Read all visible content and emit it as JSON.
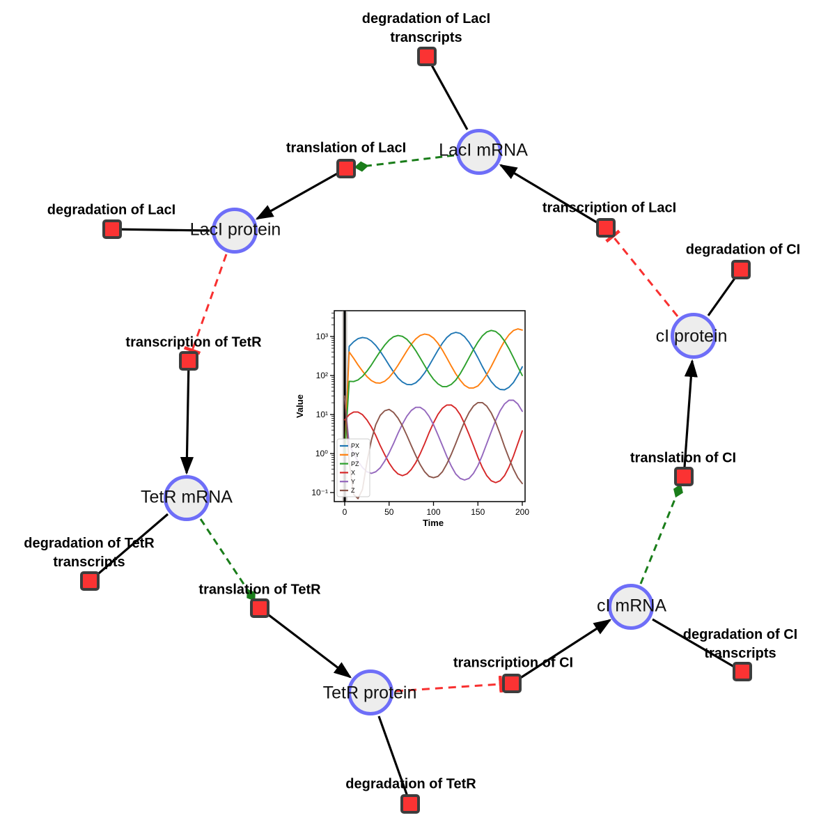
{
  "network": {
    "species": [
      {
        "id": "lacI-mrna",
        "label": "LacI mRNA"
      },
      {
        "id": "lacI-protein",
        "label": "LacI protein"
      },
      {
        "id": "tetR-mrna",
        "label": "TetR mRNA"
      },
      {
        "id": "tetR-protein",
        "label": "TetR protein"
      },
      {
        "id": "cI-mrna",
        "label": "cI mRNA"
      },
      {
        "id": "cI-protein",
        "label": "cI protein"
      }
    ],
    "reactions": [
      {
        "id": "degradation-lacI-transcripts",
        "label": "degradation of LacI transcripts"
      },
      {
        "id": "translation-lacI",
        "label": "translation of LacI"
      },
      {
        "id": "degradation-lacI",
        "label": "degradation of LacI"
      },
      {
        "id": "transcription-lacI",
        "label": "transcription of LacI"
      },
      {
        "id": "degradation-cI",
        "label": "degradation of CI"
      },
      {
        "id": "transcription-tetR",
        "label": "transcription of TetR"
      },
      {
        "id": "translation-cI",
        "label": "translation of CI"
      },
      {
        "id": "degradation-tetR-transcripts",
        "label": "degradation of TetR transcripts"
      },
      {
        "id": "translation-tetR",
        "label": "translation of TetR"
      },
      {
        "id": "degradation-cI-transcripts",
        "label": "degradation of CI transcripts"
      },
      {
        "id": "transcription-cI",
        "label": "transcription of CI"
      },
      {
        "id": "degradation-tetR",
        "label": "degradation of TetR"
      }
    ],
    "edge_types": {
      "reaction": "solid black arrow",
      "modifier": "green dashed, diamond head",
      "inhibition": "red dashed, tee head"
    }
  },
  "colors": {
    "species_fill": "#ededed",
    "species_border": "#6e6ef8",
    "reaction_fill": "#fb3333",
    "reaction_border": "#3d3d3d",
    "edge_black": "#000000",
    "modifier_green": "#1a7d1a",
    "inhibition_red": "#f83030"
  },
  "chart_data": {
    "type": "line",
    "title": "",
    "xlabel": "Time",
    "ylabel": "Value",
    "yscale": "log",
    "xlim": [
      -12,
      205
    ],
    "ylim_log10": [
      -1.23,
      3.66
    ],
    "xticks": [
      0,
      50,
      100,
      150,
      200
    ],
    "xtick_labels": [
      "0",
      "50",
      "100",
      "150",
      "200"
    ],
    "ytick_labels": [
      "10⁻¹",
      "10⁰",
      "10¹",
      "10²",
      "10³"
    ],
    "legend_position": "lower left",
    "axvline_x": 0,
    "x": [
      0,
      5,
      10,
      15,
      20,
      25,
      30,
      35,
      40,
      45,
      50,
      55,
      60,
      65,
      70,
      75,
      80,
      85,
      90,
      95,
      100,
      105,
      110,
      115,
      120,
      125,
      130,
      135,
      140,
      145,
      150,
      155,
      160,
      165,
      170,
      175,
      180,
      185,
      190,
      195,
      200
    ],
    "series": [
      {
        "name": "PX",
        "color": "#1f77b4",
        "values": [
          1,
          558,
          733,
          879,
          944,
          902,
          767,
          590,
          416,
          279,
          183,
          124,
          87,
          68,
          59,
          58,
          65,
          83,
          117,
          178,
          282,
          445,
          675,
          940,
          1172,
          1277,
          1205,
          986,
          711,
          464,
          285,
          171,
          106,
          70,
          52,
          44,
          43,
          50,
          66,
          101,
          167
        ]
      },
      {
        "name": "PY",
        "color": "#ff7f0e",
        "values": [
          1,
          401,
          277,
          187,
          130,
          94,
          74,
          65,
          64,
          71,
          89,
          123,
          182,
          280,
          429,
          634,
          865,
          1064,
          1156,
          1096,
          908,
          668,
          448,
          283,
          175,
          111,
          76,
          56,
          48,
          48,
          54,
          72,
          106,
          170,
          287,
          480,
          765,
          1109,
          1422,
          1563,
          1462
        ]
      },
      {
        "name": "PZ",
        "color": "#2ca02c",
        "values": [
          1,
          71,
          70,
          77,
          95,
          129,
          186,
          279,
          416,
          600,
          805,
          982,
          1059,
          1007,
          845,
          634,
          434,
          281,
          179,
          116,
          80,
          61,
          52,
          52,
          59,
          76,
          111,
          174,
          284,
          464,
          724,
          1035,
          1309,
          1432,
          1346,
          1084,
          765,
          484,
          288,
          167,
          100
        ]
      },
      {
        "name": "X",
        "color": "#d62728",
        "values": [
          7.3,
          9.9,
          11.6,
          11.6,
          9.9,
          7.3,
          4.8,
          2.9,
          1.6,
          0.94,
          0.57,
          0.39,
          0.3,
          0.27,
          0.3,
          0.39,
          0.58,
          0.99,
          1.8,
          3.4,
          6.1,
          10.1,
          14.5,
          17.5,
          17.6,
          14.5,
          9.9,
          5.8,
          3.1,
          1.6,
          0.8,
          0.44,
          0.27,
          0.2,
          0.18,
          0.2,
          0.27,
          0.45,
          0.86,
          1.8,
          3.8
        ]
      },
      {
        "name": "Y",
        "color": "#9467bd",
        "values": [
          25,
          1.7,
          1.0,
          0.63,
          0.44,
          0.34,
          0.31,
          0.34,
          0.43,
          0.64,
          1.04,
          1.8,
          3.3,
          5.7,
          9.1,
          12.7,
          15.3,
          15.3,
          12.8,
          9.0,
          5.5,
          3.0,
          1.6,
          0.85,
          0.48,
          0.3,
          0.23,
          0.21,
          0.23,
          0.31,
          0.49,
          0.9,
          1.8,
          3.6,
          7.1,
          12.4,
          18.7,
          23.2,
          23.2,
          18.6,
          12.1
        ]
      },
      {
        "name": "Z",
        "color": "#8c564b",
        "values": [
          30,
          0.6,
          0.09,
          0.07,
          0.12,
          0.6,
          2.2,
          5.5,
          9.5,
          12.5,
          13.5,
          11.3,
          8.1,
          5.1,
          2.9,
          1.6,
          0.89,
          0.52,
          0.34,
          0.26,
          0.24,
          0.26,
          0.34,
          0.54,
          0.95,
          1.8,
          3.5,
          6.6,
          11.2,
          16.5,
          20.2,
          20.2,
          16.4,
          11.0,
          6.3,
          3.2,
          1.5,
          0.76,
          0.4,
          0.24,
          0.17
        ]
      }
    ]
  }
}
